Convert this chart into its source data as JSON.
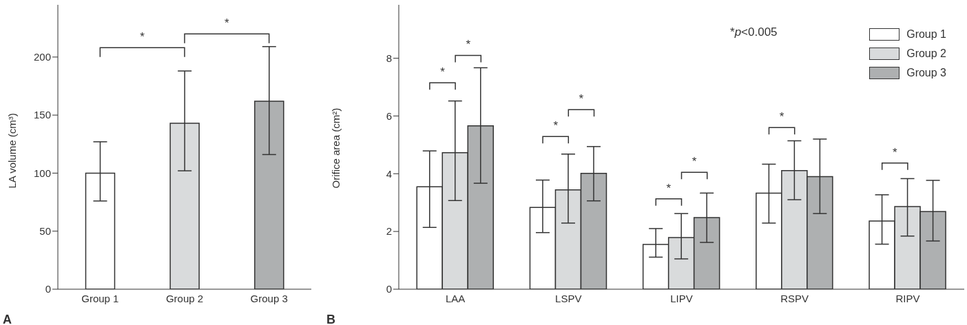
{
  "chart_data": [
    {
      "type": "bar",
      "categories": [
        "Group 1",
        "Group 2",
        "Group 3"
      ],
      "values": [
        100,
        143,
        162
      ],
      "colors": [
        "#ffffff",
        "#d9dbdc",
        "#aeb0b1"
      ],
      "errors": [
        [
          76,
          127
        ],
        [
          102,
          188
        ],
        [
          116,
          209
        ]
      ],
      "ylim": [
        0,
        245
      ],
      "yticks": [
        0,
        50,
        100,
        150,
        200
      ],
      "ylabel": "LA volume (cm³)",
      "annotations": [
        "*",
        "*",
        "A"
      ]
    },
    {
      "type": "bar",
      "categories": [
        "LAA",
        "LSPV",
        "LIPV",
        "RSPV",
        "RIPV"
      ],
      "series": [
        {
          "name": "Group 1",
          "color": "#ffffff",
          "values": [
            3.55,
            2.83,
            1.55,
            3.33,
            2.36
          ],
          "errors": [
            [
              2.14,
              4.79
            ],
            [
              1.96,
              3.78
            ],
            [
              1.11,
              2.1
            ],
            [
              2.29,
              4.33
            ],
            [
              1.56,
              3.27
            ]
          ]
        },
        {
          "name": "Group 2",
          "color": "#d9dbdc",
          "values": [
            4.73,
            3.44,
            1.79,
            4.11,
            2.86
          ],
          "errors": [
            [
              3.07,
              6.52
            ],
            [
              2.29,
              4.68
            ],
            [
              1.05,
              2.62
            ],
            [
              3.1,
              5.14
            ],
            [
              1.84,
              3.83
            ]
          ]
        },
        {
          "name": "Group 3",
          "color": "#aeb0b1",
          "values": [
            5.66,
            4.01,
            2.48,
            3.9,
            2.69
          ],
          "errors": [
            [
              3.67,
              7.67
            ],
            [
              3.06,
              4.94
            ],
            [
              1.62,
              3.33
            ],
            [
              2.62,
              5.2
            ],
            [
              1.67,
              3.77
            ]
          ]
        }
      ],
      "ylim": [
        0,
        9.85
      ],
      "yticks": [
        0,
        2,
        4,
        6,
        8
      ],
      "ylabel": "Orifice area (cm²)",
      "legend": "top right",
      "annotations": [
        "*",
        "*",
        "*",
        "*",
        "*",
        "*",
        "*",
        "*",
        "*p<0.005",
        "B"
      ]
    }
  ]
}
